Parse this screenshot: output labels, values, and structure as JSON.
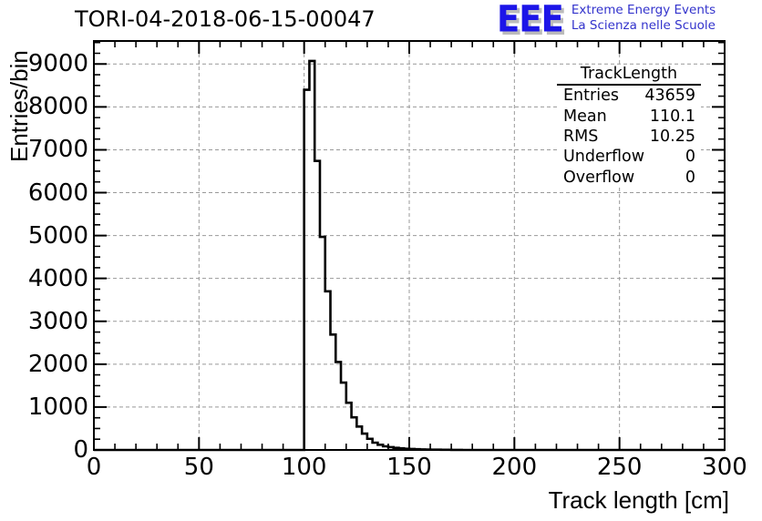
{
  "title": "TORI-04-2018-06-15-00047",
  "logo": {
    "acronym": "EEE",
    "line1": "Extreme Energy Events",
    "line2": "La Scienza nelle Scuole",
    "acronym_color": "#1c15e8",
    "text_color": "#3333cc",
    "shadow_color": "#bbbbbb"
  },
  "stats_box": {
    "title": "TrackLength",
    "rows": [
      {
        "label": "Entries",
        "value": "43659"
      },
      {
        "label": "Mean",
        "value": "110.1"
      },
      {
        "label": "RMS",
        "value": "10.25"
      },
      {
        "label": "Underflow",
        "value": "0"
      },
      {
        "label": "Overflow",
        "value": "0"
      }
    ]
  },
  "chart_data": {
    "type": "bar",
    "title": "TORI-04-2018-06-15-00047",
    "xlabel": "Track length [cm]",
    "ylabel": "Entries/bin",
    "xlim": [
      0,
      300
    ],
    "ylim": [
      0,
      9537
    ],
    "xticks": [
      0,
      50,
      100,
      150,
      200,
      250,
      300
    ],
    "yticks": [
      0,
      1000,
      2000,
      3000,
      4000,
      5000,
      6000,
      7000,
      8000,
      9000
    ],
    "x_minor_step": 10,
    "y_minor_step": 250,
    "grid": true,
    "grid_color": "#999999",
    "line_color": "#000000",
    "bin_width": 2.5,
    "bins": [
      [
        100.0,
        8400
      ],
      [
        102.5,
        9070
      ],
      [
        105.0,
        6740
      ],
      [
        107.5,
        4970
      ],
      [
        110.0,
        3700
      ],
      [
        112.5,
        2690
      ],
      [
        115.0,
        2050
      ],
      [
        117.5,
        1570
      ],
      [
        120.0,
        1100
      ],
      [
        122.5,
        760
      ],
      [
        125.0,
        545
      ],
      [
        127.5,
        380
      ],
      [
        130.0,
        260
      ],
      [
        132.5,
        170
      ],
      [
        135.0,
        120
      ],
      [
        137.5,
        85
      ],
      [
        140.0,
        65
      ],
      [
        142.5,
        50
      ],
      [
        145.0,
        38
      ],
      [
        147.5,
        29
      ],
      [
        150.0,
        22
      ],
      [
        152.5,
        17
      ],
      [
        155.0,
        13
      ],
      [
        157.5,
        10
      ],
      [
        160.0,
        8
      ],
      [
        162.5,
        6
      ],
      [
        165.0,
        4
      ],
      [
        167.5,
        3
      ],
      [
        170.0,
        2
      ],
      [
        172.5,
        1
      ],
      [
        175.0,
        0
      ]
    ]
  }
}
